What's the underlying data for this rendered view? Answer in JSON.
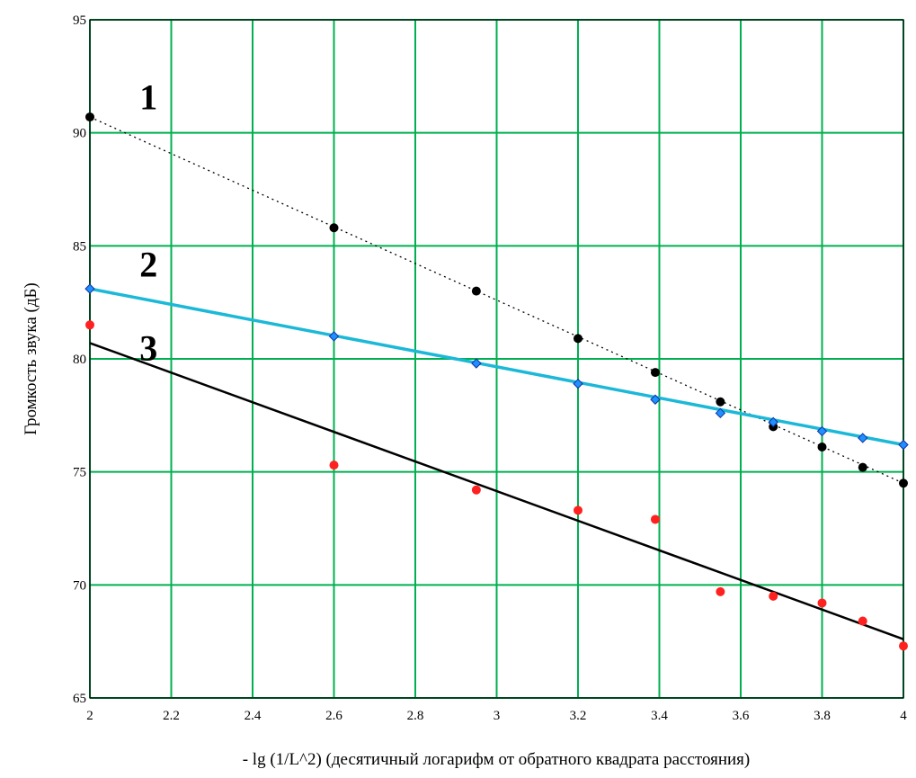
{
  "chart_data": {
    "type": "scatter",
    "xlabel": "- lg (1/L^2) (десятичный логарифм от обратного квадрата расстояния)",
    "ylabel": "Громкость звука (дБ)",
    "xlim": [
      2,
      4
    ],
    "ylim": [
      65,
      95
    ],
    "x_ticks": [
      2,
      2.2,
      2.4,
      2.6,
      2.8,
      3,
      3.2,
      3.4,
      3.6,
      3.8,
      4
    ],
    "x_tick_labels": [
      "2",
      "2.2",
      "2.4",
      "2.6",
      "2.8",
      "3",
      "3.2",
      "3.4",
      "3.6",
      "3.8",
      "4"
    ],
    "y_ticks": [
      65,
      70,
      75,
      80,
      85,
      90,
      95
    ],
    "y_tick_labels": [
      "65",
      "70",
      "75",
      "80",
      "85",
      "90",
      "95"
    ],
    "grid": true,
    "grid_color": "#00b050",
    "curve_labels": [
      {
        "text": "1",
        "x": 2.1,
        "y": 91.6
      },
      {
        "text": "2",
        "x": 2.1,
        "y": 84.2
      },
      {
        "text": "3",
        "x": 2.1,
        "y": 80.5
      }
    ],
    "series": [
      {
        "color": "#000000",
        "marker": "circle",
        "line_style": "dotted",
        "line": [
          [
            2,
            90.7
          ],
          [
            4,
            74.5
          ]
        ],
        "x": [
          2,
          2.6,
          2.95,
          3.2,
          3.39,
          3.55,
          3.68,
          3.8,
          3.9,
          4
        ],
        "y": [
          90.7,
          85.8,
          83.0,
          80.9,
          79.4,
          78.1,
          77.0,
          76.1,
          75.2,
          74.5
        ]
      },
      {
        "color": "#1e90ff",
        "line_color": "#1cb8d8",
        "marker": "diamond",
        "line_style": "solid",
        "line": [
          [
            2,
            83.1
          ],
          [
            4,
            76.2
          ]
        ],
        "x": [
          2,
          2.6,
          2.95,
          3.2,
          3.39,
          3.55,
          3.68,
          3.8,
          3.9,
          4
        ],
        "y": [
          83.1,
          81.0,
          79.8,
          78.9,
          78.2,
          77.6,
          77.2,
          76.8,
          76.5,
          76.2
        ]
      },
      {
        "color": "#ff2020",
        "line_color": "#000000",
        "marker": "circle",
        "line_style": "solid",
        "line": [
          [
            2,
            80.7
          ],
          [
            4,
            67.6
          ]
        ],
        "x": [
          2,
          2.6,
          2.95,
          3.2,
          3.39,
          3.55,
          3.68,
          3.8,
          3.9,
          4
        ],
        "y": [
          81.5,
          75.3,
          74.2,
          73.3,
          72.9,
          69.7,
          69.5,
          69.2,
          68.4,
          67.3
        ]
      }
    ]
  }
}
